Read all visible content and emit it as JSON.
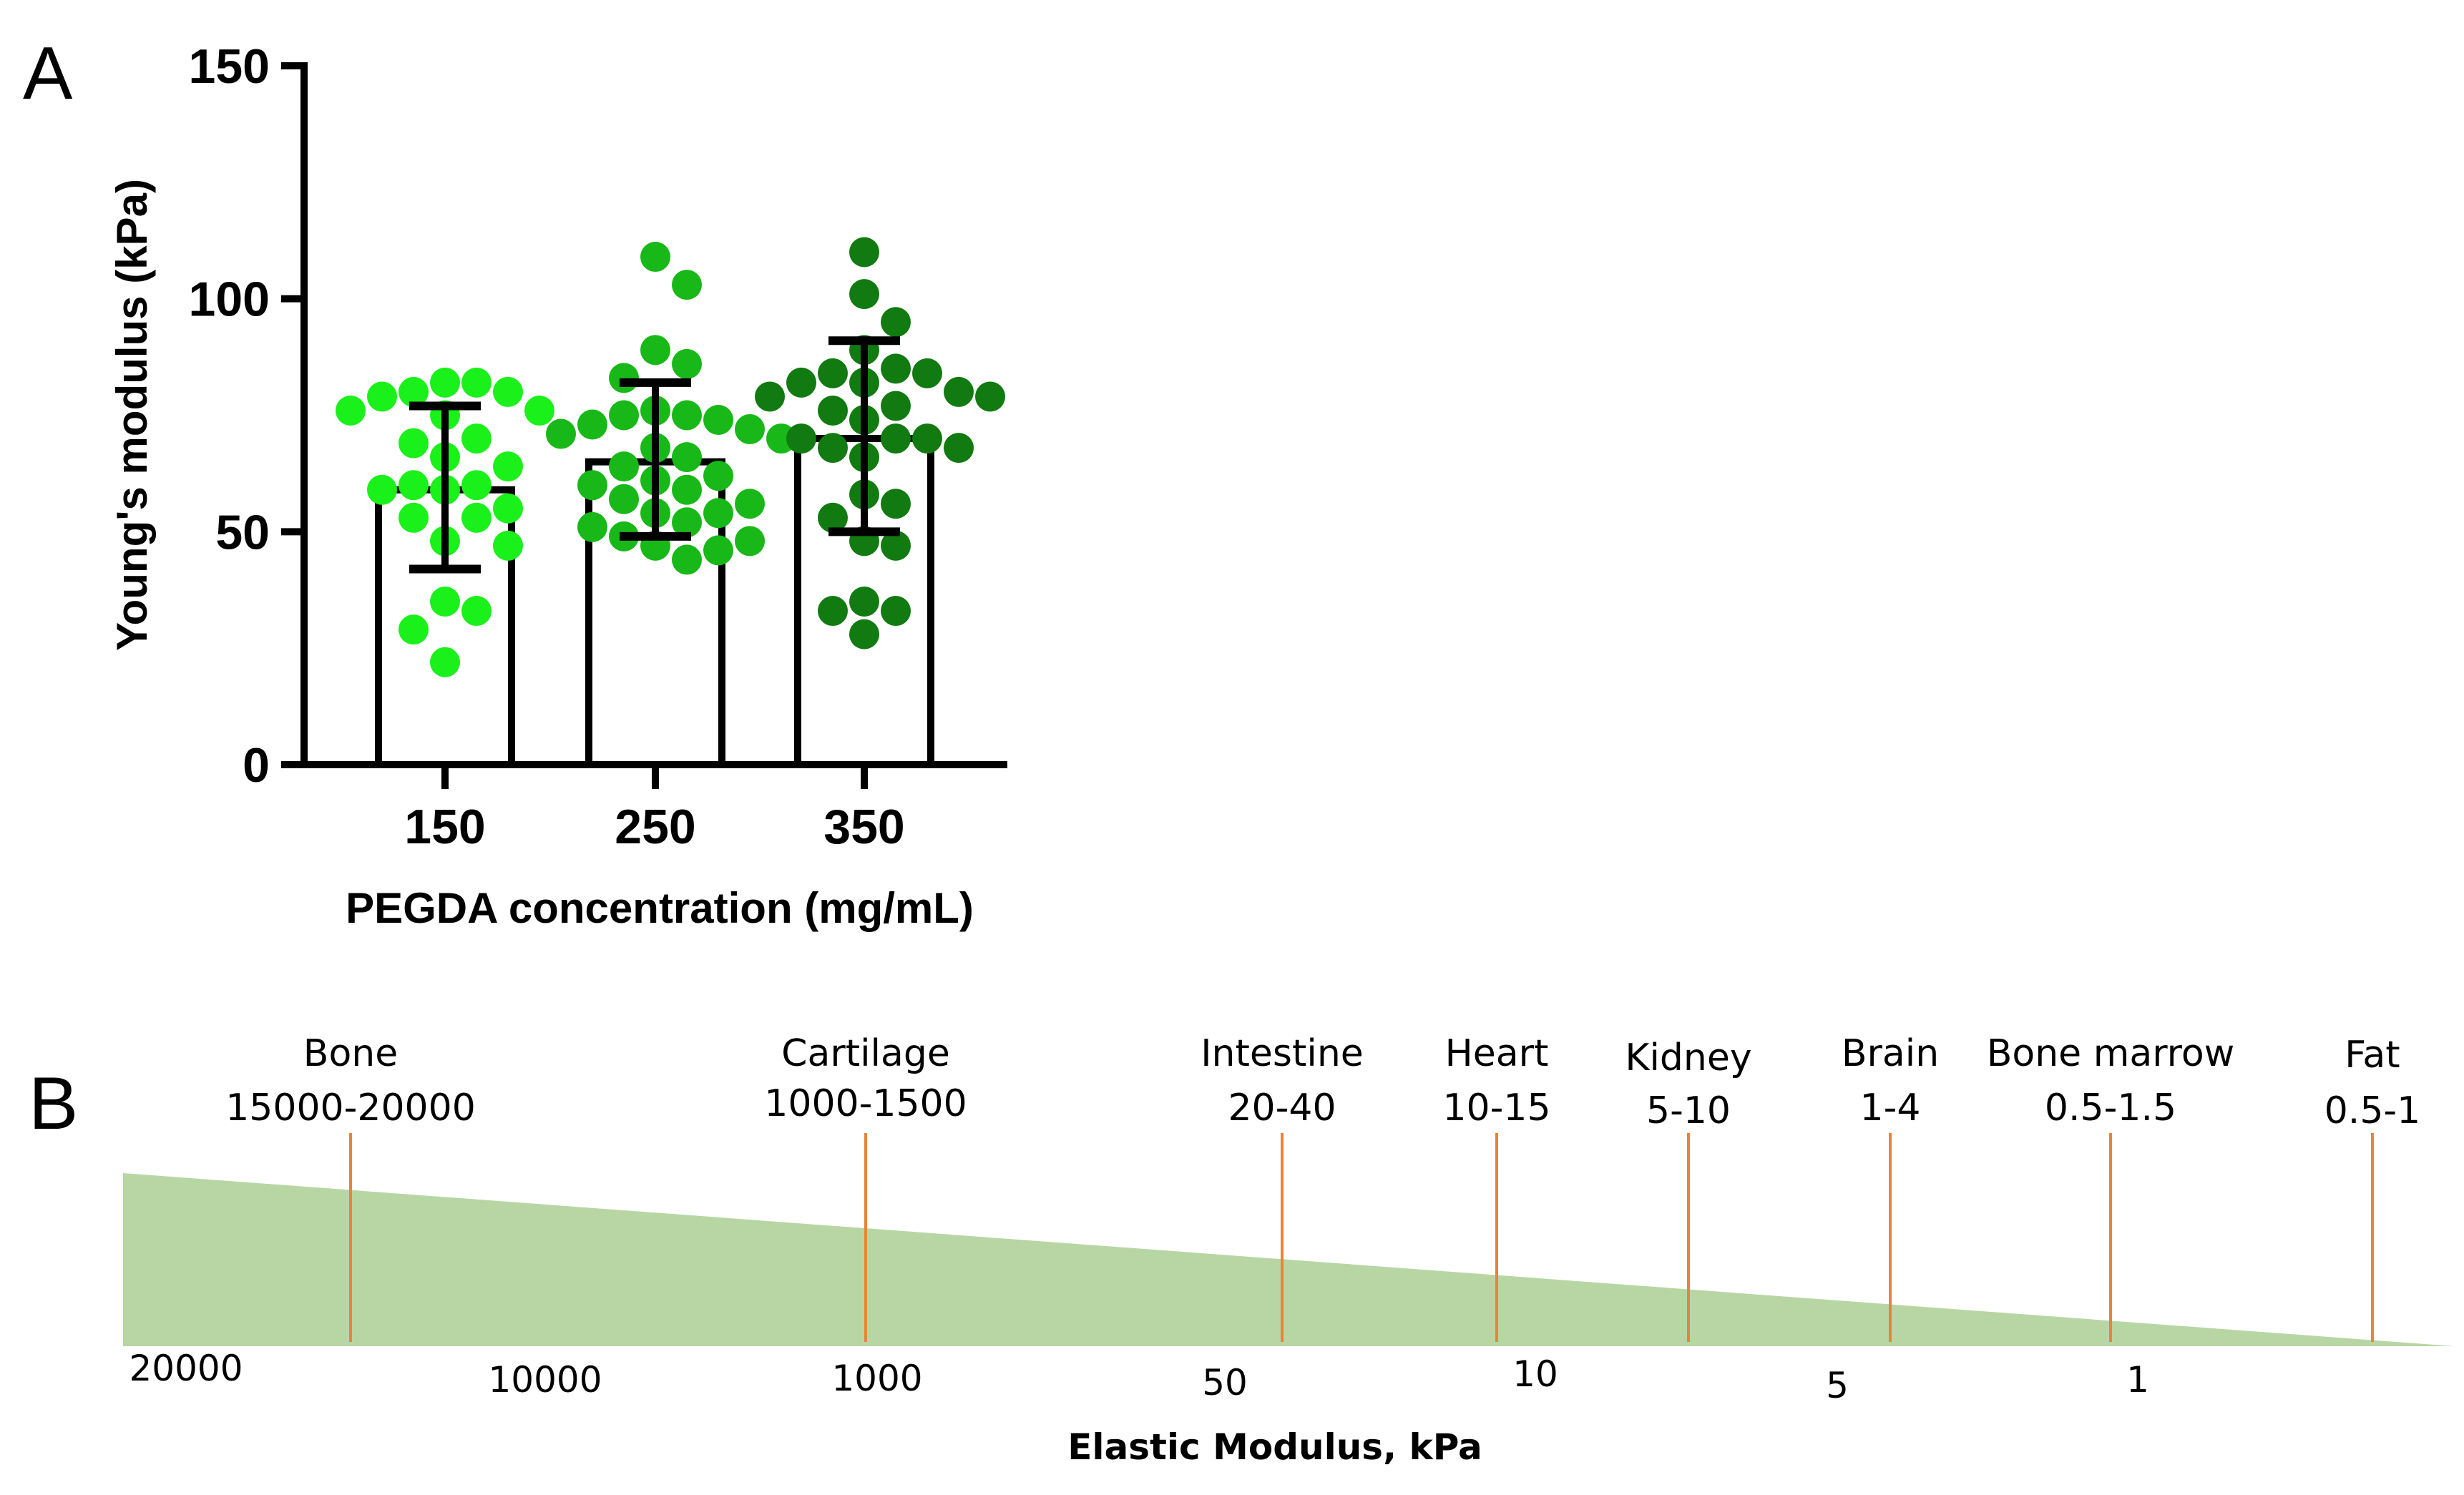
{
  "chart_data": [
    {
      "type": "bar",
      "panel": "A",
      "xlabel": "PEGDA concentration (mg/mL)",
      "ylabel": "Young's modulus (kPa)",
      "ylim": [
        0,
        150
      ],
      "yticks": [
        "0",
        "50",
        "100",
        "150"
      ],
      "categories": [
        "150",
        "250",
        "350"
      ],
      "values": [
        59,
        65,
        70
      ],
      "error_low": [
        42,
        49,
        50
      ],
      "error_high": [
        77,
        82,
        91
      ],
      "colors": {
        "150": "#1af01a",
        "250": "#17b817",
        "350": "#117a11"
      },
      "points": [
        [
          82,
          82,
          80,
          80,
          79,
          76,
          76,
          75,
          70,
          69,
          66,
          64,
          60,
          60,
          59,
          59,
          55,
          53,
          53,
          48,
          47,
          35,
          33,
          29,
          22
        ],
        [
          109,
          103,
          89,
          86,
          83,
          76,
          75,
          75,
          74,
          73,
          72,
          71,
          70,
          68,
          66,
          64,
          62,
          61,
          60,
          59,
          57,
          56,
          54,
          54,
          52,
          51,
          49,
          48,
          47,
          46,
          44
        ],
        [
          110,
          101,
          95,
          89,
          85,
          84,
          84,
          82,
          82,
          80,
          79,
          79,
          77,
          76,
          74,
          70,
          70,
          70,
          68,
          68,
          66,
          58,
          56,
          53,
          48,
          47,
          35,
          33,
          33,
          28
        ]
      ]
    },
    {
      "type": "scale",
      "panel": "B",
      "xlabel": "Elastic Modulus, kPa",
      "scale_labels": [
        "20000",
        "10000",
        "1000",
        "50",
        "10",
        "5",
        "1"
      ],
      "fill_color": "#b8d6a4",
      "marker_color": "#e8843a",
      "tissues": [
        {
          "name": "Bone",
          "range": "15000-20000"
        },
        {
          "name": "Cartilage",
          "range": "1000-1500"
        },
        {
          "name": "Intestine",
          "range": "20-40"
        },
        {
          "name": "Heart",
          "range": "10-15"
        },
        {
          "name": "Kidney",
          "range": "5-10"
        },
        {
          "name": "Brain",
          "range": "1-4"
        },
        {
          "name": "Bone marrow",
          "range": "0.5-1.5"
        },
        {
          "name": "Fat",
          "range": "0.5-1"
        }
      ]
    }
  ],
  "panels": {
    "a_label": "A",
    "b_label": "B"
  }
}
